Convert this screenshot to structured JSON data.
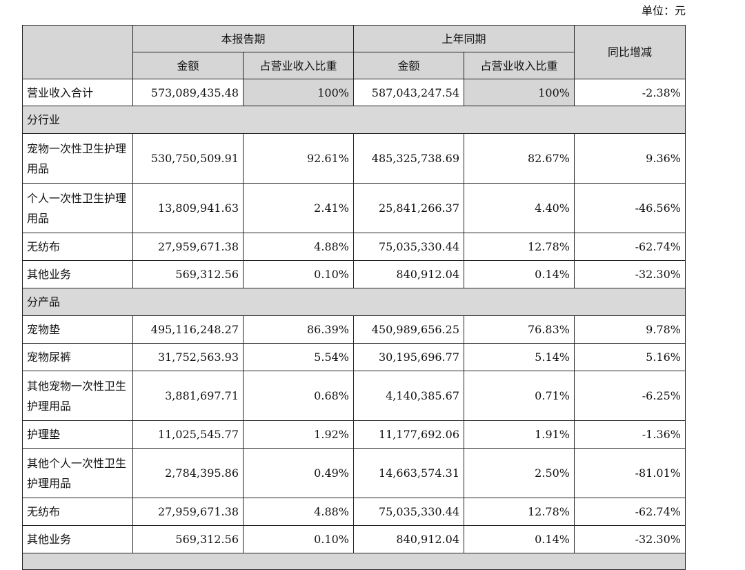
{
  "unit_label": "单位：元",
  "headers": {
    "current_period": "本报告期",
    "prior_period": "上年同期",
    "yoy": "同比增减",
    "amount": "金额",
    "share": "占营业收入比重"
  },
  "total": {
    "label": "营业收入合计",
    "current_amount": "573,089,435.48",
    "current_share": "100%",
    "prior_amount": "587,043,247.54",
    "prior_share": "100%",
    "yoy": "-2.38%"
  },
  "sections": [
    {
      "title": "分行业",
      "rows": [
        {
          "label": "宠物一次性卫生护理用品",
          "current_amount": "530,750,509.91",
          "current_share": "92.61%",
          "prior_amount": "485,325,738.69",
          "prior_share": "82.67%",
          "yoy": "9.36%"
        },
        {
          "label": "个人一次性卫生护理用品",
          "current_amount": "13,809,941.63",
          "current_share": "2.41%",
          "prior_amount": "25,841,266.37",
          "prior_share": "4.40%",
          "yoy": "-46.56%"
        },
        {
          "label": "无纺布",
          "current_amount": "27,959,671.38",
          "current_share": "4.88%",
          "prior_amount": "75,035,330.44",
          "prior_share": "12.78%",
          "yoy": "-62.74%"
        },
        {
          "label": "其他业务",
          "current_amount": "569,312.56",
          "current_share": "0.10%",
          "prior_amount": "840,912.04",
          "prior_share": "0.14%",
          "yoy": "-32.30%"
        }
      ]
    },
    {
      "title": "分产品",
      "rows": [
        {
          "label": "宠物垫",
          "current_amount": "495,116,248.27",
          "current_share": "86.39%",
          "prior_amount": "450,989,656.25",
          "prior_share": "76.83%",
          "yoy": "9.78%"
        },
        {
          "label": "宠物尿裤",
          "current_amount": "31,752,563.93",
          "current_share": "5.54%",
          "prior_amount": "30,195,696.77",
          "prior_share": "5.14%",
          "yoy": "5.16%"
        },
        {
          "label": "其他宠物一次性卫生护理用品",
          "current_amount": "3,881,697.71",
          "current_share": "0.68%",
          "prior_amount": "4,140,385.67",
          "prior_share": "0.71%",
          "yoy": "-6.25%"
        },
        {
          "label": "护理垫",
          "current_amount": "11,025,545.77",
          "current_share": "1.92%",
          "prior_amount": "11,177,692.06",
          "prior_share": "1.91%",
          "yoy": "-1.36%"
        },
        {
          "label": "其他个人一次性卫生护理用品",
          "current_amount": "2,784,395.86",
          "current_share": "0.49%",
          "prior_amount": "14,663,574.31",
          "prior_share": "2.50%",
          "yoy": "-81.01%"
        },
        {
          "label": "无纺布",
          "current_amount": "27,959,671.38",
          "current_share": "4.88%",
          "prior_amount": "75,035,330.44",
          "prior_share": "12.78%",
          "yoy": "-62.74%"
        },
        {
          "label": "其他业务",
          "current_amount": "569,312.56",
          "current_share": "0.10%",
          "prior_amount": "840,912.04",
          "prior_share": "0.14%",
          "yoy": "-32.30%"
        }
      ]
    }
  ]
}
